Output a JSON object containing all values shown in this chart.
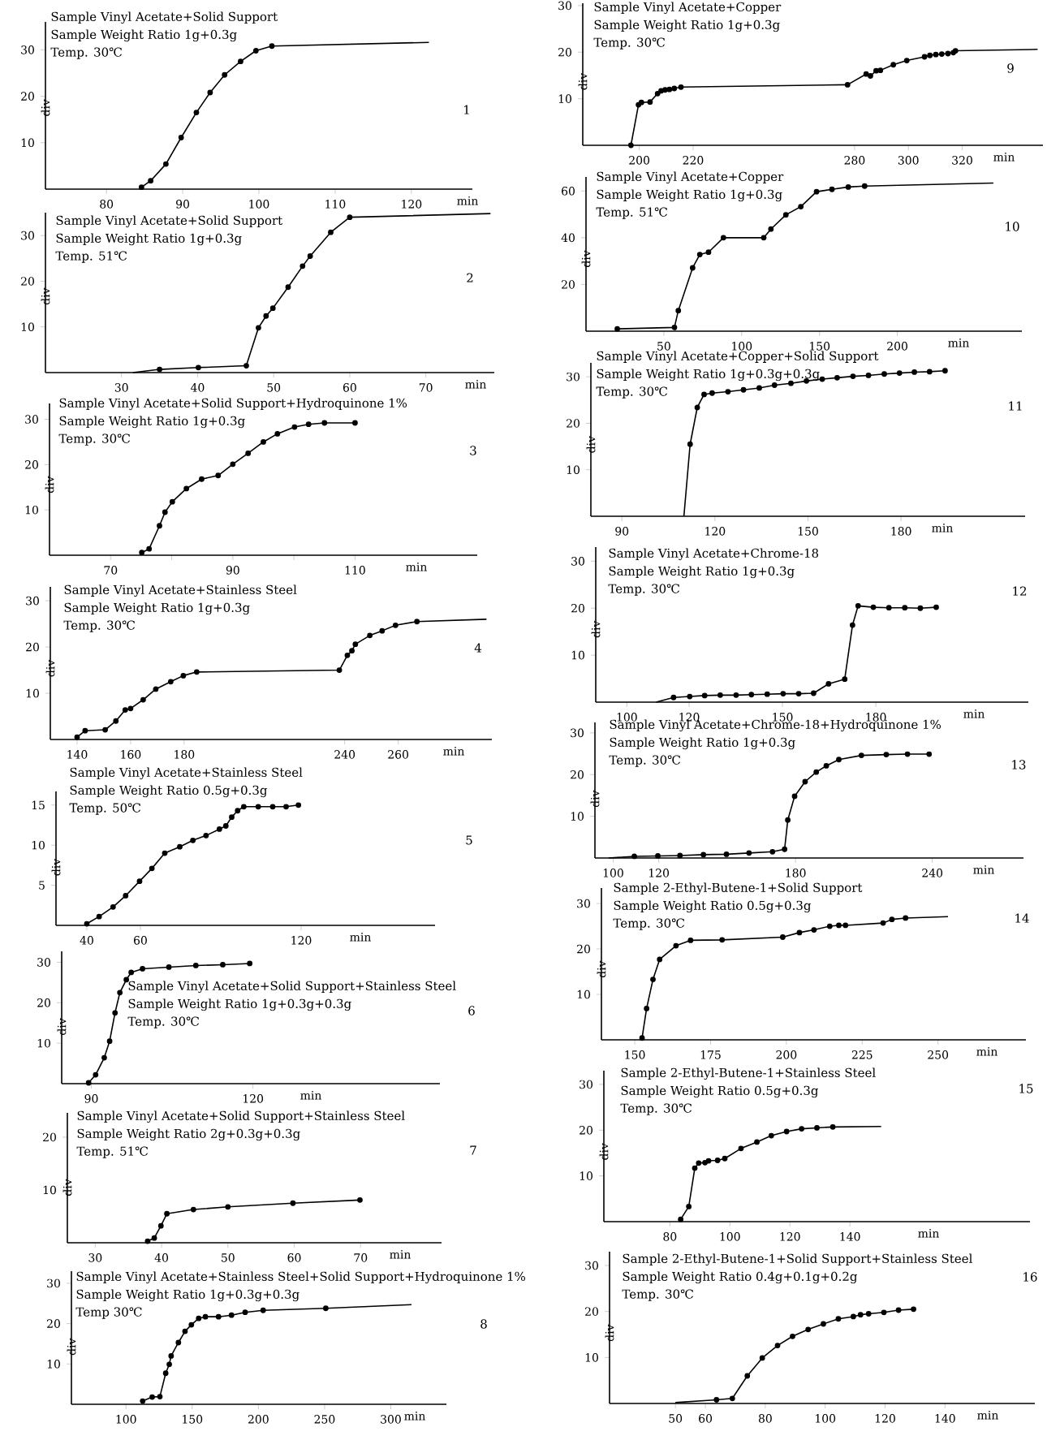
{
  "chart_data": [
    {
      "type": "line",
      "title": "Sample Vinyl Acetate+Solid Support",
      "subtitle": "Sample Weight Ratio 1g+0.3g",
      "annotations": [
        "Temp. 30℃",
        "1"
      ],
      "xlabel": "min",
      "ylabel": "div",
      "xlim": [
        72,
        128
      ],
      "ylim": [
        0,
        36
      ],
      "xticks": [
        80,
        90,
        100,
        110,
        120
      ],
      "yticks": [
        10,
        20,
        30
      ],
      "marker": "circle",
      "series": [
        {
          "color": "#000000",
          "x": [
            84.6,
            85.8,
            87.8,
            89.8,
            91.8,
            93.6,
            95.5,
            97.6,
            99.6,
            101.7
          ],
          "values": [
            0.4,
            1.8,
            5.4,
            11.1,
            16.5,
            20.8,
            24.6,
            27.5,
            29.8,
            30.8
          ]
        },
        {
          "color": "#000000",
          "marker": "none",
          "x": [
            101.7,
            122.3
          ],
          "values": [
            30.8,
            31.6
          ]
        }
      ]
    },
    {
      "type": "line",
      "title": "Sample Vinyl Acetate+Solid Support",
      "subtitle": "Sample Weight Ratio 1g+0.3g",
      "annotations": [
        "Temp. 51℃",
        "2"
      ],
      "xlabel": "min",
      "ylabel": "div",
      "xlim": [
        20,
        79
      ],
      "ylim": [
        0,
        35
      ],
      "xticks": [
        30,
        40,
        50,
        60,
        70
      ],
      "yticks": [
        10,
        20,
        30
      ],
      "marker": "circle",
      "series": [
        {
          "color": "#000000",
          "x": [
            35,
            40.1,
            46.4,
            48,
            49,
            49.9,
            51.9,
            53.8,
            54.8,
            57.5,
            60
          ],
          "values": [
            0.7,
            1.1,
            1.5,
            9.8,
            12.4,
            14.1,
            18.7,
            23.3,
            25.5,
            30.7,
            34
          ]
        },
        {
          "color": "#000000",
          "marker": "none",
          "x": [
            31.5,
            35,
            47,
            60,
            78.5
          ],
          "values": [
            0,
            0.7,
            null,
            34,
            34.8
          ]
        }
      ]
    },
    {
      "type": "line",
      "title": "Sample Vinyl Acetate+Solid Support+Hydroquinone 1%",
      "subtitle": "Sample Weight Ratio 1g+0.3g",
      "annotations": [
        "Temp. 30℃",
        "3"
      ],
      "xlabel": "min",
      "ylabel": "div",
      "xlim": [
        60,
        130
      ],
      "ylim": [
        0,
        33.5
      ],
      "xticks": [
        70,
        {
          "value": 80,
          "label": null
        },
        90,
        {
          "value": 100,
          "label": null
        },
        110
      ],
      "yticks": [
        10,
        20,
        30
      ],
      "marker": "circle",
      "series": [
        {
          "color": "#000000",
          "x": [
            75.1,
            76.3,
            78,
            78.9,
            80.1,
            82.4,
            84.9,
            87.6,
            90,
            92.5,
            95,
            97.3,
            100.1,
            102.4,
            105,
            110
          ],
          "values": [
            0.6,
            1.4,
            6.5,
            9.5,
            11.8,
            14.7,
            16.8,
            17.6,
            20.1,
            22.5,
            25,
            26.8,
            28.3,
            28.9,
            29.2,
            29.2
          ]
        }
      ]
    },
    {
      "type": "line",
      "title": "Sample Vinyl Acetate+Stainless Steel",
      "subtitle": "Sample Weight Ratio 1g+0.3g",
      "annotations": [
        "Temp. 30℃",
        "4"
      ],
      "xlabel": "min",
      "ylabel": "div",
      "xlim": [
        130,
        295
      ],
      "ylim": [
        0,
        33
      ],
      "xticks": [
        140,
        160,
        180,
        240,
        260
      ],
      "yticks": [
        10,
        20,
        30
      ],
      "marker": "circle",
      "series": [
        {
          "color": "#000000",
          "x": [
            140,
            143,
            150.5,
            154.5,
            158,
            160,
            164.7,
            169.4,
            175,
            179.7,
            184.7,
            238,
            241,
            242.7,
            244,
            249.4,
            254,
            259,
            267
          ],
          "values": [
            0.5,
            1.9,
            2.1,
            4,
            6.4,
            6.7,
            8.6,
            10.9,
            12.5,
            13.8,
            14.6,
            15,
            18.2,
            19.2,
            20.6,
            22.5,
            23.5,
            24.7,
            25.5
          ]
        },
        {
          "color": "#000000",
          "marker": "none",
          "x": [
            267,
            293
          ],
          "values": [
            25.5,
            26
          ]
        }
      ]
    },
    {
      "type": "line",
      "title": "Sample Vinyl Acetate+Stainless Steel",
      "subtitle": "Sample Weight Ratio 0.5g+0.3g",
      "annotations": [
        "Temp. 50℃",
        "5"
      ],
      "xlabel": "min",
      "ylabel": "div",
      "xlim": [
        28.5,
        170
      ],
      "ylim": [
        0,
        16.7
      ],
      "xticks": [
        40,
        60,
        120
      ],
      "yticks": [
        5,
        10,
        15
      ],
      "marker": "circle",
      "series": [
        {
          "color": "#000000",
          "x": [
            40,
            44.6,
            49.8,
            54.5,
            59.7,
            64.3,
            69.1,
            74.7,
            79.6,
            84.5,
            89.5,
            91.9,
            94.1,
            96.3,
            98.6,
            104,
            109.4,
            114.4,
            119
          ],
          "values": [
            0.2,
            1.1,
            2.3,
            3.7,
            5.5,
            7.1,
            9,
            9.8,
            10.6,
            11.2,
            12,
            12.4,
            13.5,
            14.3,
            14.8,
            14.8,
            14.8,
            14.8,
            15
          ]
        }
      ]
    },
    {
      "type": "line",
      "title": "Sample Vinyl Acetate+Solid Support+Stainless Steel",
      "subtitle": "Sample Weight Ratio 1g+0.3g+0.3g",
      "annotations": [
        "Temp. 30℃",
        "6"
      ],
      "xlabel": "min",
      "ylabel": "div",
      "xlim": [
        84.5,
        154.7
      ],
      "ylim": [
        0,
        32.7
      ],
      "xticks": [
        90,
        120
      ],
      "yticks": [
        10,
        20,
        30
      ],
      "marker": "circle",
      "series": [
        {
          "color": "#000000",
          "x": [
            89.5,
            90.8,
            92.4,
            93.4,
            94.4,
            95.3,
            96.5,
            97.4,
            99.5,
            104.4,
            109.4,
            114.4,
            119.4
          ],
          "values": [
            0.2,
            2.2,
            6.4,
            10.5,
            17.5,
            22.5,
            25.7,
            27.5,
            28.4,
            28.8,
            29.2,
            29.4,
            29.7
          ]
        }
      ]
    },
    {
      "type": "line",
      "title": "Sample Vinyl Acetate+Solid Support+Stainless Steel",
      "subtitle": "Sample Weight Ratio 2g+0.3g+0.3g",
      "annotations": [
        "Temp. 51℃",
        "7"
      ],
      "xlabel": "min",
      "ylabel": "div",
      "xlim": [
        25.8,
        82.2
      ],
      "ylim": [
        0,
        24.6
      ],
      "xticks": [
        30,
        40,
        50,
        60,
        70
      ],
      "yticks": [
        10,
        20
      ],
      "marker": "circle",
      "series": [
        {
          "color": "#000000",
          "x": [
            37.9,
            38.9,
            39.9,
            40.8,
            44.8,
            50,
            59.8,
            69.9
          ],
          "values": [
            0.3,
            0.9,
            3.2,
            5.5,
            6.3,
            6.8,
            7.5,
            8.1
          ]
        }
      ]
    },
    {
      "type": "line",
      "title": "Sample Vinyl Acetate+Stainless Steel+Solid Support+Hydroquinone 1%",
      "subtitle": "Sample Weight Ratio 1g+0.3g+0.3g",
      "annotations": [
        "Temp 30℃",
        "8"
      ],
      "xlabel": "min",
      "ylabel": "div",
      "xlim": [
        58.8,
        342
      ],
      "ylim": [
        0,
        33
      ],
      "xticks": [
        100,
        150,
        200,
        250,
        300
      ],
      "yticks": [
        10,
        20,
        30
      ],
      "marker": "circle",
      "series": [
        {
          "color": "#000000",
          "x": [
            112.6,
            119.8,
            125.6,
            130,
            132.7,
            134.1,
            139.6,
            144.6,
            149.4,
            154.9,
            160,
            169.9,
            179.7,
            190,
            203.6,
            250.9
          ],
          "values": [
            0.8,
            1.8,
            1.9,
            7.7,
            9.9,
            12,
            15.3,
            18.1,
            19.7,
            21.3,
            21.7,
            21.7,
            22.1,
            22.8,
            23.3,
            23.8
          ]
        },
        {
          "color": "#000000",
          "marker": "none",
          "x": [
            250.9,
            315.6
          ],
          "values": [
            23.8,
            24.7
          ]
        }
      ]
    },
    {
      "type": "line",
      "title": "Sample Vinyl Acetate+Copper",
      "subtitle": "Sample Weight Ratio 1g+0.3g",
      "annotations": [
        "Temp. 30℃",
        "9"
      ],
      "xlabel": "min",
      "ylabel": "div",
      "xlim": [
        179,
        350
      ],
      "ylim": [
        0,
        30.5
      ],
      "xticks": [
        200,
        220,
        280,
        300,
        320
      ],
      "yticks": [
        10,
        20,
        30
      ],
      "marker": "circle",
      "series": [
        {
          "color": "#000000",
          "x": [
            196.9,
            199.7,
            200.8,
            204,
            206.8,
            208.1,
            209.6,
            211.2,
            213,
            215.5,
            277.4,
            284.3,
            285.9,
            288,
            289.6,
            294.4,
            299.4,
            306,
            308,
            310.2,
            312.4,
            314.7,
            316.7,
            317.5
          ],
          "values": [
            0,
            8.7,
            9.2,
            9.3,
            11.1,
            11.7,
            11.9,
            12,
            12.2,
            12.5,
            13,
            15.3,
            14.9,
            16,
            16.1,
            17.3,
            18.2,
            19,
            19.3,
            19.5,
            19.6,
            19.7,
            19.9,
            20.3
          ]
        },
        {
          "color": "#000000",
          "marker": "none",
          "x": [
            317.5,
            348
          ],
          "values": [
            20.3,
            20.6
          ]
        }
      ]
    },
    {
      "type": "line",
      "title": "Sample Vinyl Acetate+Copper",
      "subtitle": "Sample Weight Ratio 1g+0.3g",
      "annotations": [
        "Temp. 51℃",
        "10"
      ],
      "xlabel": "min",
      "ylabel": "div",
      "xlim": [
        0,
        280
      ],
      "ylim": [
        0,
        66
      ],
      "xticks": [
        50,
        100,
        150,
        200
      ],
      "yticks": [
        20,
        40,
        60
      ],
      "marker": "circle",
      "series": [
        {
          "color": "#000000",
          "x": [
            20.1,
            56.8,
            59.3,
            68.5,
            73.1,
            78.7,
            88.3,
            114.2,
            118.8,
            128.4,
            138,
            148.1,
            158,
            168.5,
            179
          ],
          "values": [
            1,
            1.6,
            8.8,
            27.1,
            32.8,
            33.8,
            40,
            40,
            43.7,
            49.8,
            53.3,
            59.7,
            60.7,
            61.7,
            62.1
          ]
        },
        {
          "color": "#000000",
          "marker": "none",
          "x": [
            179,
            261.7
          ],
          "values": [
            62.1,
            63.4
          ]
        }
      ]
    },
    {
      "type": "line",
      "title": "Sample Vinyl Acetate+Copper+Solid Support",
      "subtitle": "Sample Weight Ratio 1g+0.3g+0.3g",
      "annotations": [
        "Temp. 30℃",
        "11"
      ],
      "xlabel": "min",
      "ylabel": "div",
      "xlim": [
        80,
        220
      ],
      "ylim": [
        0,
        33
      ],
      "xticks": [
        90,
        120,
        150,
        180
      ],
      "yticks": [
        10,
        20,
        30
      ],
      "marker": "circle",
      "series": [
        {
          "color": "#000000",
          "x": [
            112,
            114.3,
            116.5,
            119.1,
            124.2,
            129.2,
            134.3,
            139.2,
            144.5,
            149.5,
            154.6,
            159.4,
            164.5,
            169.5,
            174.6,
            179.5,
            184.3,
            189.2,
            194.2
          ],
          "values": [
            15.5,
            23.4,
            26.2,
            26.5,
            26.8,
            27.2,
            27.6,
            28.2,
            28.6,
            29.1,
            29.5,
            29.8,
            30.1,
            30.3,
            30.6,
            30.8,
            31,
            31.1,
            31.3
          ]
        },
        {
          "color": "#000000",
          "marker": "none",
          "x": [
            110,
            112
          ],
          "values": [
            0,
            15.5
          ]
        }
      ]
    },
    {
      "type": "line",
      "title": "Sample Vinyl Acetate+Chrome-18",
      "subtitle": "Sample Weight Ratio 1g+0.3g",
      "annotations": [
        "Temp. 30℃",
        "12"
      ],
      "xlabel": "min",
      "ylabel": "div",
      "xlim": [
        90,
        229
      ],
      "ylim": [
        0,
        33
      ],
      "xticks": [
        100,
        120,
        150,
        180
      ],
      "yticks": [
        10,
        20,
        30
      ],
      "marker": "circle",
      "series": [
        {
          "color": "#000000",
          "x": [
            115,
            120.2,
            125,
            130,
            135.1,
            140,
            145.1,
            150.2,
            155.2,
            160,
            164.8,
            170,
            172.5,
            174.3,
            179.2,
            184.2,
            189.3,
            194.3,
            199.4
          ],
          "values": [
            1,
            1.2,
            1.4,
            1.5,
            1.5,
            1.6,
            1.7,
            1.8,
            1.8,
            1.9,
            3.9,
            4.9,
            16.4,
            20.5,
            20.2,
            20.1,
            20.1,
            20,
            20.2
          ]
        },
        {
          "color": "#000000",
          "marker": "none",
          "x": [
            109.4,
            115
          ],
          "values": [
            0,
            1
          ]
        }
      ]
    },
    {
      "type": "line",
      "title": "Sample Vinyl Acetate+Chrome-18+Hydroquinone 1%",
      "subtitle": "Sample Weight Ratio 1g+0.3g",
      "annotations": [
        "Temp. 30℃",
        "13"
      ],
      "xlabel": "min",
      "ylabel": "div",
      "xlim": [
        92,
        280
      ],
      "ylim": [
        0,
        32.5
      ],
      "xticks": [
        100,
        120,
        180,
        240
      ],
      "yticks": [
        10,
        20,
        30
      ],
      "marker": "circle",
      "series": [
        {
          "color": "#000000",
          "x": [
            109.3,
            119.6,
            129.3,
            139.6,
            149.7,
            159.6,
            169.9,
            175.2,
            176.6,
            179.6,
            184.2,
            189.1,
            193.5,
            199,
            208.9,
            219.8,
            229.1,
            238.6
          ],
          "values": [
            0.4,
            0.5,
            0.6,
            0.8,
            0.9,
            1.2,
            1.5,
            2.1,
            9.1,
            14.8,
            18.3,
            20.6,
            22.1,
            23.6,
            24.6,
            24.8,
            24.9,
            24.9
          ]
        },
        {
          "color": "#000000",
          "marker": "none",
          "x": [
            98,
            109.3
          ],
          "values": [
            0,
            0.4
          ]
        }
      ]
    },
    {
      "type": "line",
      "title": "Sample 2-Ethyl-Butene-1+Solid Support",
      "subtitle": "Sample Weight Ratio 0.5g+0.3g",
      "annotations": [
        "Temp. 30℃",
        "14"
      ],
      "xlabel": "min",
      "ylabel": "div",
      "xlim": [
        139,
        279
      ],
      "ylim": [
        0,
        33.4
      ],
      "xticks": [
        150,
        175,
        200,
        225,
        250
      ],
      "yticks": [
        10,
        20,
        30
      ],
      "marker": "circle",
      "series": [
        {
          "color": "#000000",
          "x": [
            152.4,
            153.9,
            156,
            158.2,
            163.6,
            168.4,
            178.8,
            198.8,
            204.3,
            209.1,
            214.3,
            217.3,
            219.5,
            231.9,
            234.8,
            239.3
          ],
          "values": [
            0.4,
            6.9,
            13.3,
            17.7,
            20.7,
            21.9,
            22,
            22.6,
            23.6,
            24.2,
            25,
            25.2,
            25.2,
            25.7,
            26.5,
            26.8
          ]
        },
        {
          "color": "#000000",
          "marker": "none",
          "x": [
            239.3,
            253.3
          ],
          "values": [
            26.8,
            27.1
          ]
        }
      ]
    },
    {
      "type": "line",
      "title": "Sample 2-Ethyl-Butene-1+Stainless Steel",
      "subtitle": "Sample Weight Ratio 0.5g+0.3g",
      "annotations": [
        "Temp. 30℃",
        "15"
      ],
      "xlabel": "min",
      "ylabel": "div",
      "xlim": [
        58,
        200
      ],
      "ylim": [
        0,
        33
      ],
      "xticks": [
        80,
        100,
        120,
        140
      ],
      "yticks": [
        10,
        20,
        30
      ],
      "marker": "circle",
      "series": [
        {
          "color": "#000000",
          "x": [
            83.6,
            86.3,
            88.3,
            89.6,
            91.7,
            92.9,
            95.9,
            98.3,
            103.7,
            109,
            113.8,
            118.9,
            123.9,
            129,
            134.3
          ],
          "values": [
            0.5,
            3.3,
            11.7,
            12.8,
            12.9,
            13.3,
            13.4,
            13.8,
            16,
            17.4,
            18.8,
            19.7,
            20.3,
            20.5,
            20.7
          ]
        },
        {
          "color": "#000000",
          "marker": "none",
          "x": [
            134.3,
            150.4
          ],
          "values": [
            20.7,
            20.8
          ]
        }
      ]
    },
    {
      "type": "line",
      "title": "Sample 2-Ethyl-Butene-1+Solid Support+Stainless Steel",
      "subtitle": "Sample Weight Ratio 0.4g+0.1g+0.2g",
      "annotations": [
        "Temp. 30℃",
        "16"
      ],
      "xlabel": "min",
      "ylabel": "div",
      "xlim": [
        28,
        170
      ],
      "ylim": [
        0,
        33
      ],
      "xticks": [
        50,
        60,
        80,
        100,
        120,
        140
      ],
      "yticks": [
        10,
        20,
        30
      ],
      "marker": "circle",
      "series": [
        {
          "color": "#000000",
          "x": [
            63.7,
            69,
            74,
            79,
            84.1,
            89.1,
            94.3,
            99.4,
            104.4,
            109.4,
            111.8,
            114.5,
            119.6,
            124.5,
            129.5
          ],
          "values": [
            0.8,
            1.1,
            6,
            9.9,
            12.6,
            14.6,
            16.1,
            17.3,
            18.4,
            18.9,
            19.3,
            19.5,
            19.8,
            20.3,
            20.5
          ]
        },
        {
          "color": "#000000",
          "marker": "none",
          "x": [
            50,
            63.7
          ],
          "values": [
            0.2,
            0.8
          ]
        }
      ]
    }
  ]
}
